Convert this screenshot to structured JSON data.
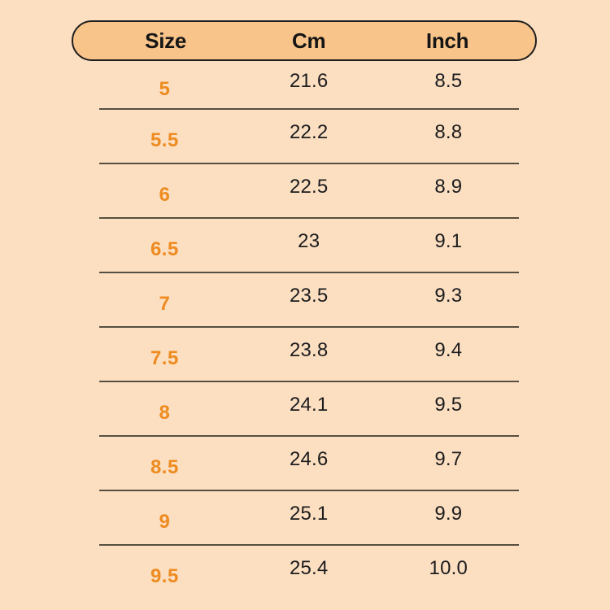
{
  "table": {
    "columns": [
      "Size",
      "Cm",
      "Inch"
    ],
    "rows": [
      {
        "size": "5",
        "cm": "21.6",
        "inch": "8.5"
      },
      {
        "size": "5.5",
        "cm": "22.2",
        "inch": "8.8"
      },
      {
        "size": "6",
        "cm": "22.5",
        "inch": "8.9"
      },
      {
        "size": "6.5",
        "cm": "23",
        "inch": "9.1"
      },
      {
        "size": "7",
        "cm": "23.5",
        "inch": "9.3"
      },
      {
        "size": "7.5",
        "cm": "23.8",
        "inch": "9.4"
      },
      {
        "size": "8",
        "cm": "24.1",
        "inch": "9.5"
      },
      {
        "size": "8.5",
        "cm": "24.6",
        "inch": "9.7"
      },
      {
        "size": "9",
        "cm": "25.1",
        "inch": "9.9"
      },
      {
        "size": "9.5",
        "cm": "25.4",
        "inch": "10.0"
      }
    ]
  },
  "colors": {
    "background": "#fcdfc1",
    "header_fill": "#f9c489",
    "header_border": "#1e1e1e",
    "divider": "#564f41",
    "size_text": "#ee8b21",
    "value_text": "#1c1c1e"
  }
}
